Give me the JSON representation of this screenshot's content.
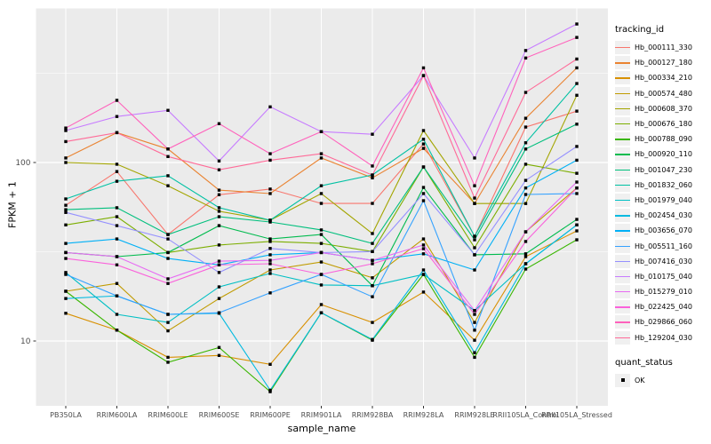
{
  "chart_data": {
    "type": "line",
    "title": "",
    "xlabel": "sample_name",
    "ylabel": "FPKM + 1",
    "y_scale": "log10",
    "y_ticks": [
      10,
      100
    ],
    "y_minor_ticks": [
      31.62,
      316.23
    ],
    "ylim": [
      4.3,
      730
    ],
    "grid": true,
    "panel_bg": "#EBEBEB",
    "grid_color": "#FFFFFF",
    "point_shape": "filled-square",
    "point_color": "#000000",
    "legend_position": "right",
    "categories": [
      "PB350LA",
      "RRIM600LA",
      "RRIM600LE",
      "RRIM600SE",
      "RRIM600PE",
      "RRIM901LA",
      "RRIM928BA",
      "RRIM928LA",
      "RRIM928LE",
      "RRII105LA_Control",
      "RRII105LA_Stressed"
    ],
    "series": [
      {
        "name": "Hb_000111_330",
        "color": "#F8766D",
        "values": [
          57.6,
          89,
          39.5,
          66,
          71,
          59,
          59,
          127,
          38.6,
          158,
          194
        ]
      },
      {
        "name": "Hb_000127_180",
        "color": "#EA8331",
        "values": [
          106,
          147,
          119,
          70,
          67,
          106,
          82,
          120,
          59,
          177,
          339
        ]
      },
      {
        "name": "Hb_000334_210",
        "color": "#D89000",
        "values": [
          14.3,
          11.5,
          8.1,
          8.3,
          7.4,
          16,
          12.7,
          18.8,
          10.1,
          29.7,
          41.4
        ]
      },
      {
        "name": "Hb_000574_480",
        "color": "#C09B00",
        "values": [
          19,
          21,
          11.4,
          17.3,
          25,
          27.7,
          22.6,
          37.3,
          12.7,
          40.9,
          72
        ]
      },
      {
        "name": "Hb_000608_370",
        "color": "#A3A500",
        "values": [
          100,
          97.8,
          74.1,
          53.3,
          47.5,
          67,
          40,
          151,
          58.9,
          58.9,
          238
        ]
      },
      {
        "name": "Hb_000676_180",
        "color": "#7CAE00",
        "values": [
          44.7,
          49.7,
          31.3,
          34.5,
          36.1,
          35.2,
          31.7,
          94.4,
          33.3,
          97.8,
          87
        ]
      },
      {
        "name": "Hb_000788_090",
        "color": "#39B600",
        "values": [
          19,
          11.5,
          7.6,
          9.2,
          5.2,
          14.4,
          10.1,
          23.6,
          8.1,
          25.3,
          36.9
        ]
      },
      {
        "name": "Hb_000920_110",
        "color": "#00BB4E",
        "values": [
          31.3,
          29.7,
          31.3,
          44.3,
          37.3,
          39.5,
          20.4,
          72.5,
          30.4,
          30.8,
          48
        ]
      },
      {
        "name": "Hb_001047_230",
        "color": "#00BF7D",
        "values": [
          54.4,
          55.8,
          39.5,
          49.7,
          46.4,
          41.9,
          35.2,
          94.4,
          36.9,
          119,
          164
        ]
      },
      {
        "name": "Hb_001832_060",
        "color": "#00C1A3",
        "values": [
          62.5,
          78.5,
          84.3,
          55.8,
          47.5,
          74.1,
          85.2,
          135,
          38.6,
          129,
          277
        ]
      },
      {
        "name": "Hb_001979_040",
        "color": "#00BFC4",
        "values": [
          24.2,
          14.1,
          12.7,
          20.1,
          23.9,
          20.6,
          20.4,
          23.6,
          14.8,
          27.1,
          44.7
        ]
      },
      {
        "name": "Hb_002454_030",
        "color": "#00BAE0",
        "values": [
          17.3,
          17.9,
          14.1,
          14.3,
          5.3,
          14.4,
          10.2,
          25,
          8.6,
          27.1,
          44.7
        ]
      },
      {
        "name": "Hb_003656_070",
        "color": "#00B0F6",
        "values": [
          35.2,
          37.3,
          29,
          26.7,
          30.4,
          31.3,
          28.3,
          30.8,
          25,
          72,
          103
        ]
      },
      {
        "name": "Hb_005511_160",
        "color": "#35A2FF",
        "values": [
          23.6,
          17.9,
          14.1,
          14.4,
          18.6,
          23.6,
          17.7,
          61.1,
          11.5,
          66.2,
          67
        ]
      },
      {
        "name": "Hb_007416_030",
        "color": "#9590FF",
        "values": [
          52.5,
          44.3,
          37.3,
          24.2,
          33,
          31.3,
          31.7,
          67,
          30.4,
          79.4,
          123
        ]
      },
      {
        "name": "Hb_010175_040",
        "color": "#C77CFF",
        "values": [
          151,
          181,
          196,
          102,
          205,
          149,
          144,
          307,
          106,
          424,
          597
        ]
      },
      {
        "name": "Hb_015279_010",
        "color": "#E76BF3",
        "values": [
          31.3,
          29.7,
          22.3,
          28,
          28.3,
          31.3,
          28.3,
          34.5,
          14.8,
          40.9,
          77.7
        ]
      },
      {
        "name": "Hb_022425_040",
        "color": "#FA62DB",
        "values": [
          29,
          26.7,
          21,
          26.7,
          27.1,
          23.6,
          27.1,
          32.9,
          14.1,
          36.1,
          72
        ]
      },
      {
        "name": "Hb_029866_060",
        "color": "#FF62BC",
        "values": [
          156,
          223,
          119,
          165,
          112,
          149,
          95.6,
          339,
          74.1,
          385,
          502
        ]
      },
      {
        "name": "Hb_129204_030",
        "color": "#FF6A98",
        "values": [
          131,
          147,
          108,
          91,
          103,
          112,
          85,
          307,
          63.2,
          247,
          380
        ]
      }
    ],
    "legend": {
      "series_title": "tracking_id",
      "point_title": "quant_status",
      "point_label": "OK"
    }
  }
}
